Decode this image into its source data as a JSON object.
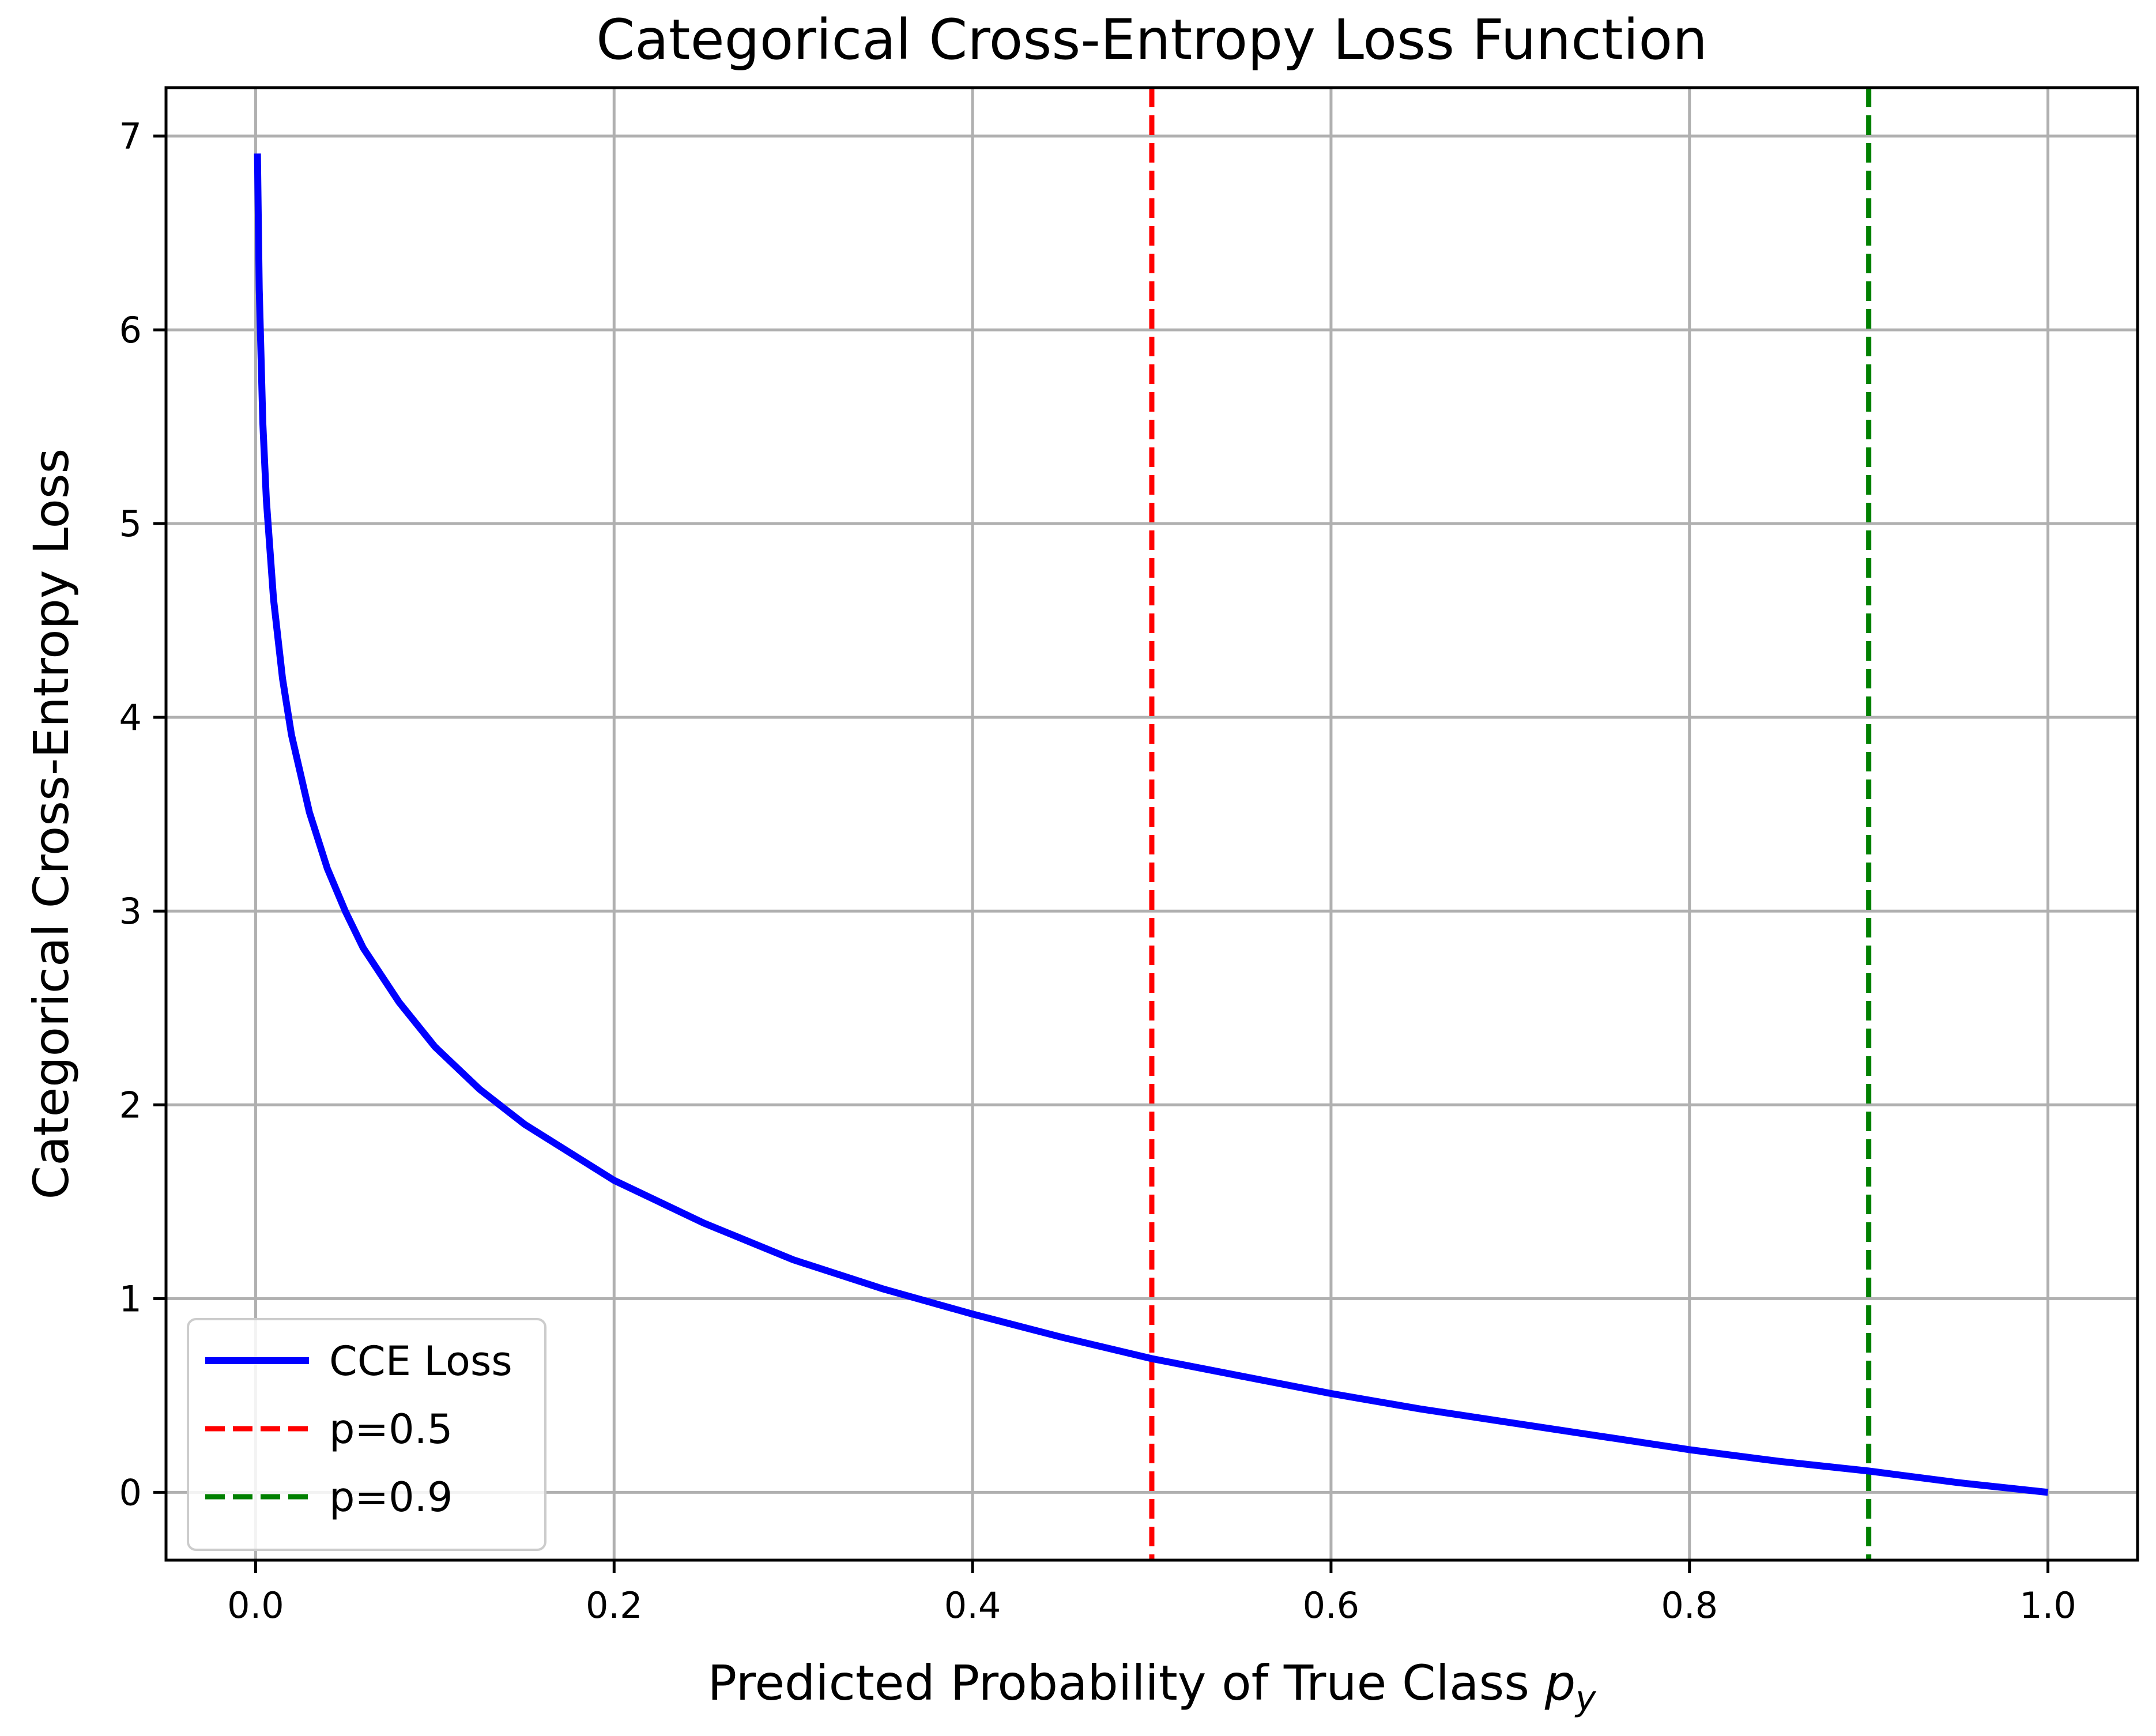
{
  "chart_data": {
    "type": "line",
    "title": "Categorical Cross-Entropy Loss Function",
    "xlabel": "Predicted Probability of True Class",
    "xlabel_symbol": "p",
    "xlabel_symbol_sub": "y",
    "ylabel": "Categorical Cross-Entropy Loss",
    "xlim": [
      -0.05,
      1.05
    ],
    "ylim": [
      -0.35,
      7.25
    ],
    "xticks": [
      0.0,
      0.2,
      0.4,
      0.6,
      0.8,
      1.0
    ],
    "xtick_labels": [
      "0.0",
      "0.2",
      "0.4",
      "0.6",
      "0.8",
      "1.0"
    ],
    "yticks": [
      0,
      1,
      2,
      3,
      4,
      5,
      6,
      7
    ],
    "ytick_labels": [
      "0",
      "1",
      "2",
      "3",
      "4",
      "5",
      "6",
      "7"
    ],
    "grid": true,
    "legend_position": "lower-left",
    "series": [
      {
        "name": "CCE Loss",
        "color": "#0000ff",
        "style": "solid",
        "x": [
          0.001,
          0.002,
          0.004,
          0.006,
          0.01,
          0.015,
          0.02,
          0.03,
          0.04,
          0.05,
          0.06,
          0.08,
          0.1,
          0.125,
          0.15,
          0.2,
          0.25,
          0.3,
          0.35,
          0.4,
          0.45,
          0.5,
          0.55,
          0.6,
          0.65,
          0.7,
          0.75,
          0.8,
          0.85,
          0.9,
          0.95,
          1.0
        ],
        "y": [
          6.91,
          6.21,
          5.52,
          5.12,
          4.61,
          4.2,
          3.91,
          3.51,
          3.22,
          3.0,
          2.81,
          2.53,
          2.3,
          2.08,
          1.9,
          1.61,
          1.39,
          1.2,
          1.05,
          0.92,
          0.8,
          0.69,
          0.6,
          0.51,
          0.43,
          0.36,
          0.29,
          0.22,
          0.16,
          0.11,
          0.05,
          0.0
        ]
      }
    ],
    "vlines": [
      {
        "name": "p=0.5",
        "x": 0.5,
        "color": "#ff0000",
        "style": "dashed"
      },
      {
        "name": "p=0.9",
        "x": 0.9,
        "color": "#008000",
        "style": "dashed"
      }
    ]
  }
}
